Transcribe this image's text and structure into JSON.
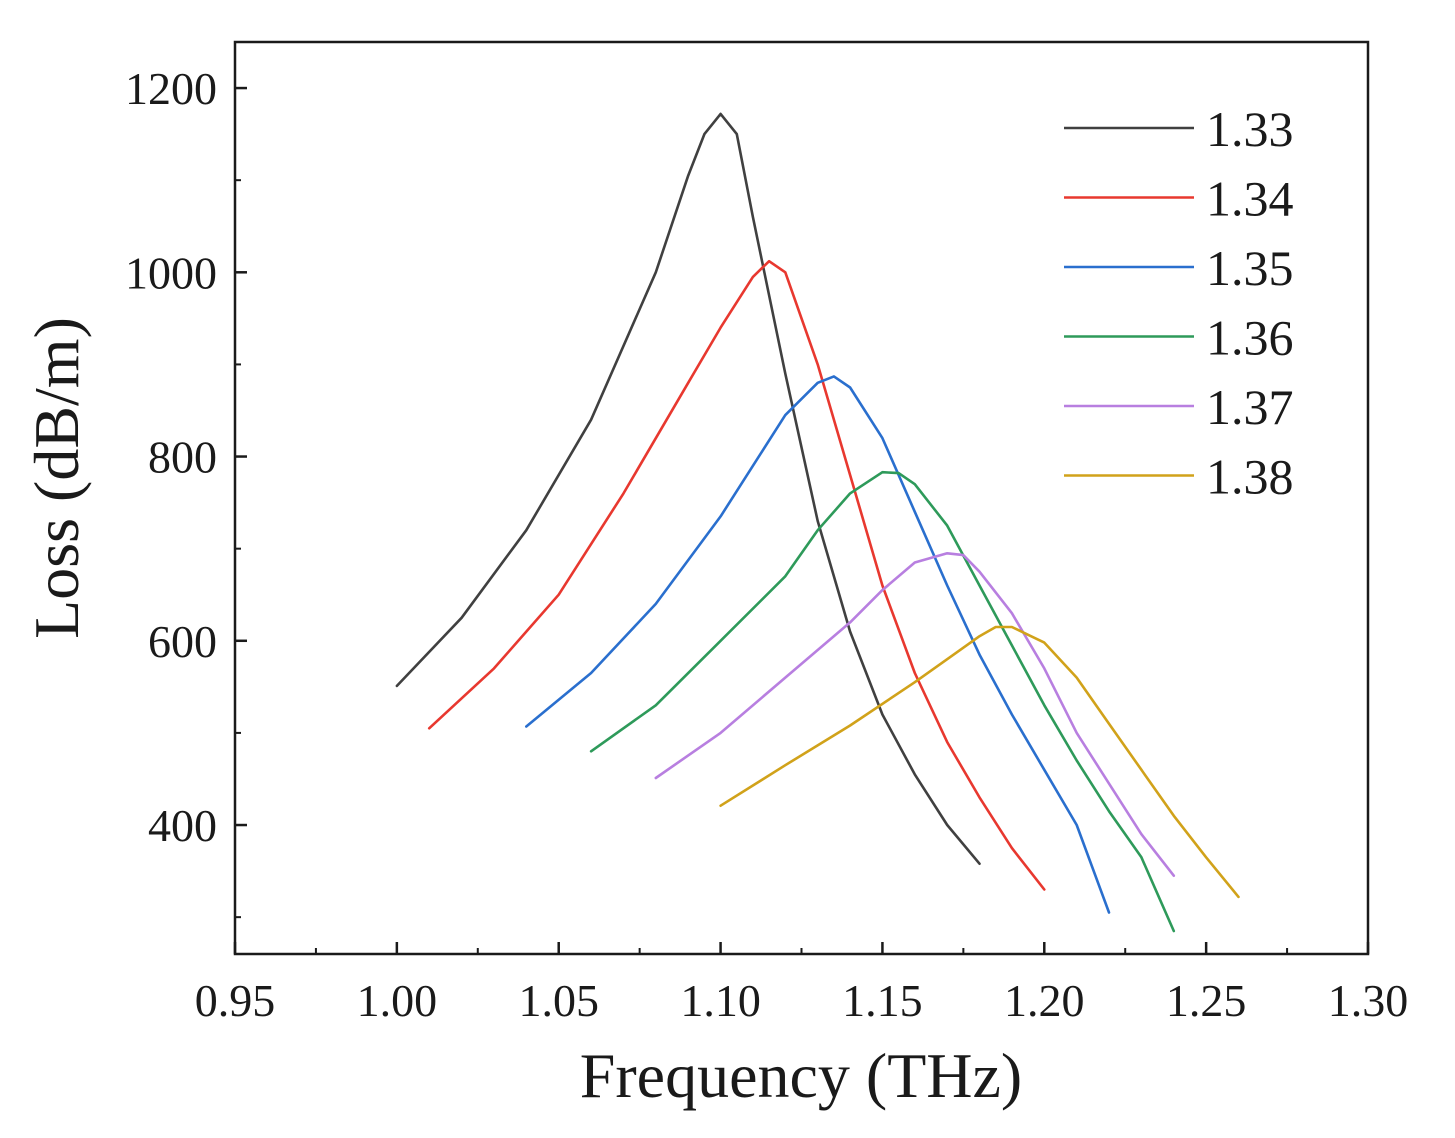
{
  "chart_data": {
    "type": "line",
    "title": "",
    "xlabel": "Frequency (THz)",
    "ylabel": "Loss (dB/m)",
    "xlim": [
      0.95,
      1.3
    ],
    "ylim": [
      260,
      1250
    ],
    "xticks": [
      0.95,
      1.0,
      1.05,
      1.1,
      1.15,
      1.2,
      1.25,
      1.3
    ],
    "xtick_labels": [
      "0.95",
      "1.00",
      "1.05",
      "1.10",
      "1.15",
      "1.20",
      "1.25",
      "1.30"
    ],
    "yticks": [
      400,
      600,
      800,
      1000,
      1200
    ],
    "ytick_labels": [
      "400",
      "600",
      "800",
      "1000",
      "1200"
    ],
    "grid": false,
    "legend_position": "top-right",
    "series": [
      {
        "name": "1.33",
        "color": "#404040",
        "x": [
          1.0,
          1.02,
          1.04,
          1.06,
          1.08,
          1.09,
          1.095,
          1.1,
          1.105,
          1.11,
          1.12,
          1.13,
          1.14,
          1.15,
          1.16,
          1.17,
          1.18
        ],
        "y": [
          551,
          625,
          720,
          840,
          1000,
          1105,
          1150,
          1172,
          1150,
          1060,
          890,
          730,
          610,
          520,
          455,
          400,
          358
        ]
      },
      {
        "name": "1.34",
        "color": "#e8382f",
        "x": [
          1.01,
          1.03,
          1.05,
          1.07,
          1.09,
          1.1,
          1.11,
          1.115,
          1.12,
          1.13,
          1.14,
          1.15,
          1.16,
          1.17,
          1.18,
          1.19,
          1.2
        ],
        "y": [
          505,
          570,
          650,
          760,
          880,
          940,
          995,
          1012,
          1000,
          900,
          780,
          660,
          565,
          490,
          430,
          375,
          330
        ]
      },
      {
        "name": "1.35",
        "color": "#2a6fce",
        "x": [
          1.04,
          1.06,
          1.08,
          1.1,
          1.11,
          1.12,
          1.13,
          1.135,
          1.14,
          1.15,
          1.16,
          1.17,
          1.18,
          1.19,
          1.2,
          1.21,
          1.22
        ],
        "y": [
          507,
          565,
          640,
          735,
          790,
          845,
          880,
          887,
          875,
          820,
          740,
          660,
          585,
          520,
          460,
          400,
          305
        ]
      },
      {
        "name": "1.36",
        "color": "#2e9a5a",
        "x": [
          1.06,
          1.08,
          1.1,
          1.12,
          1.13,
          1.14,
          1.15,
          1.155,
          1.16,
          1.17,
          1.18,
          1.19,
          1.2,
          1.21,
          1.22,
          1.23,
          1.24
        ],
        "y": [
          480,
          530,
          600,
          670,
          720,
          760,
          783,
          782,
          770,
          725,
          660,
          595,
          530,
          470,
          415,
          365,
          285
        ]
      },
      {
        "name": "1.37",
        "color": "#b87fe0",
        "x": [
          1.08,
          1.1,
          1.12,
          1.14,
          1.15,
          1.16,
          1.17,
          1.175,
          1.18,
          1.19,
          1.2,
          1.21,
          1.22,
          1.23,
          1.24
        ],
        "y": [
          451,
          500,
          560,
          620,
          655,
          685,
          695,
          693,
          675,
          630,
          570,
          500,
          445,
          390,
          345
        ]
      },
      {
        "name": "1.38",
        "color": "#d1a21a",
        "x": [
          1.1,
          1.12,
          1.14,
          1.16,
          1.17,
          1.18,
          1.185,
          1.19,
          1.2,
          1.21,
          1.22,
          1.23,
          1.24,
          1.25,
          1.26
        ],
        "y": [
          421,
          465,
          508,
          555,
          580,
          605,
          615,
          615,
          598,
          560,
          510,
          460,
          410,
          365,
          322
        ]
      }
    ]
  }
}
